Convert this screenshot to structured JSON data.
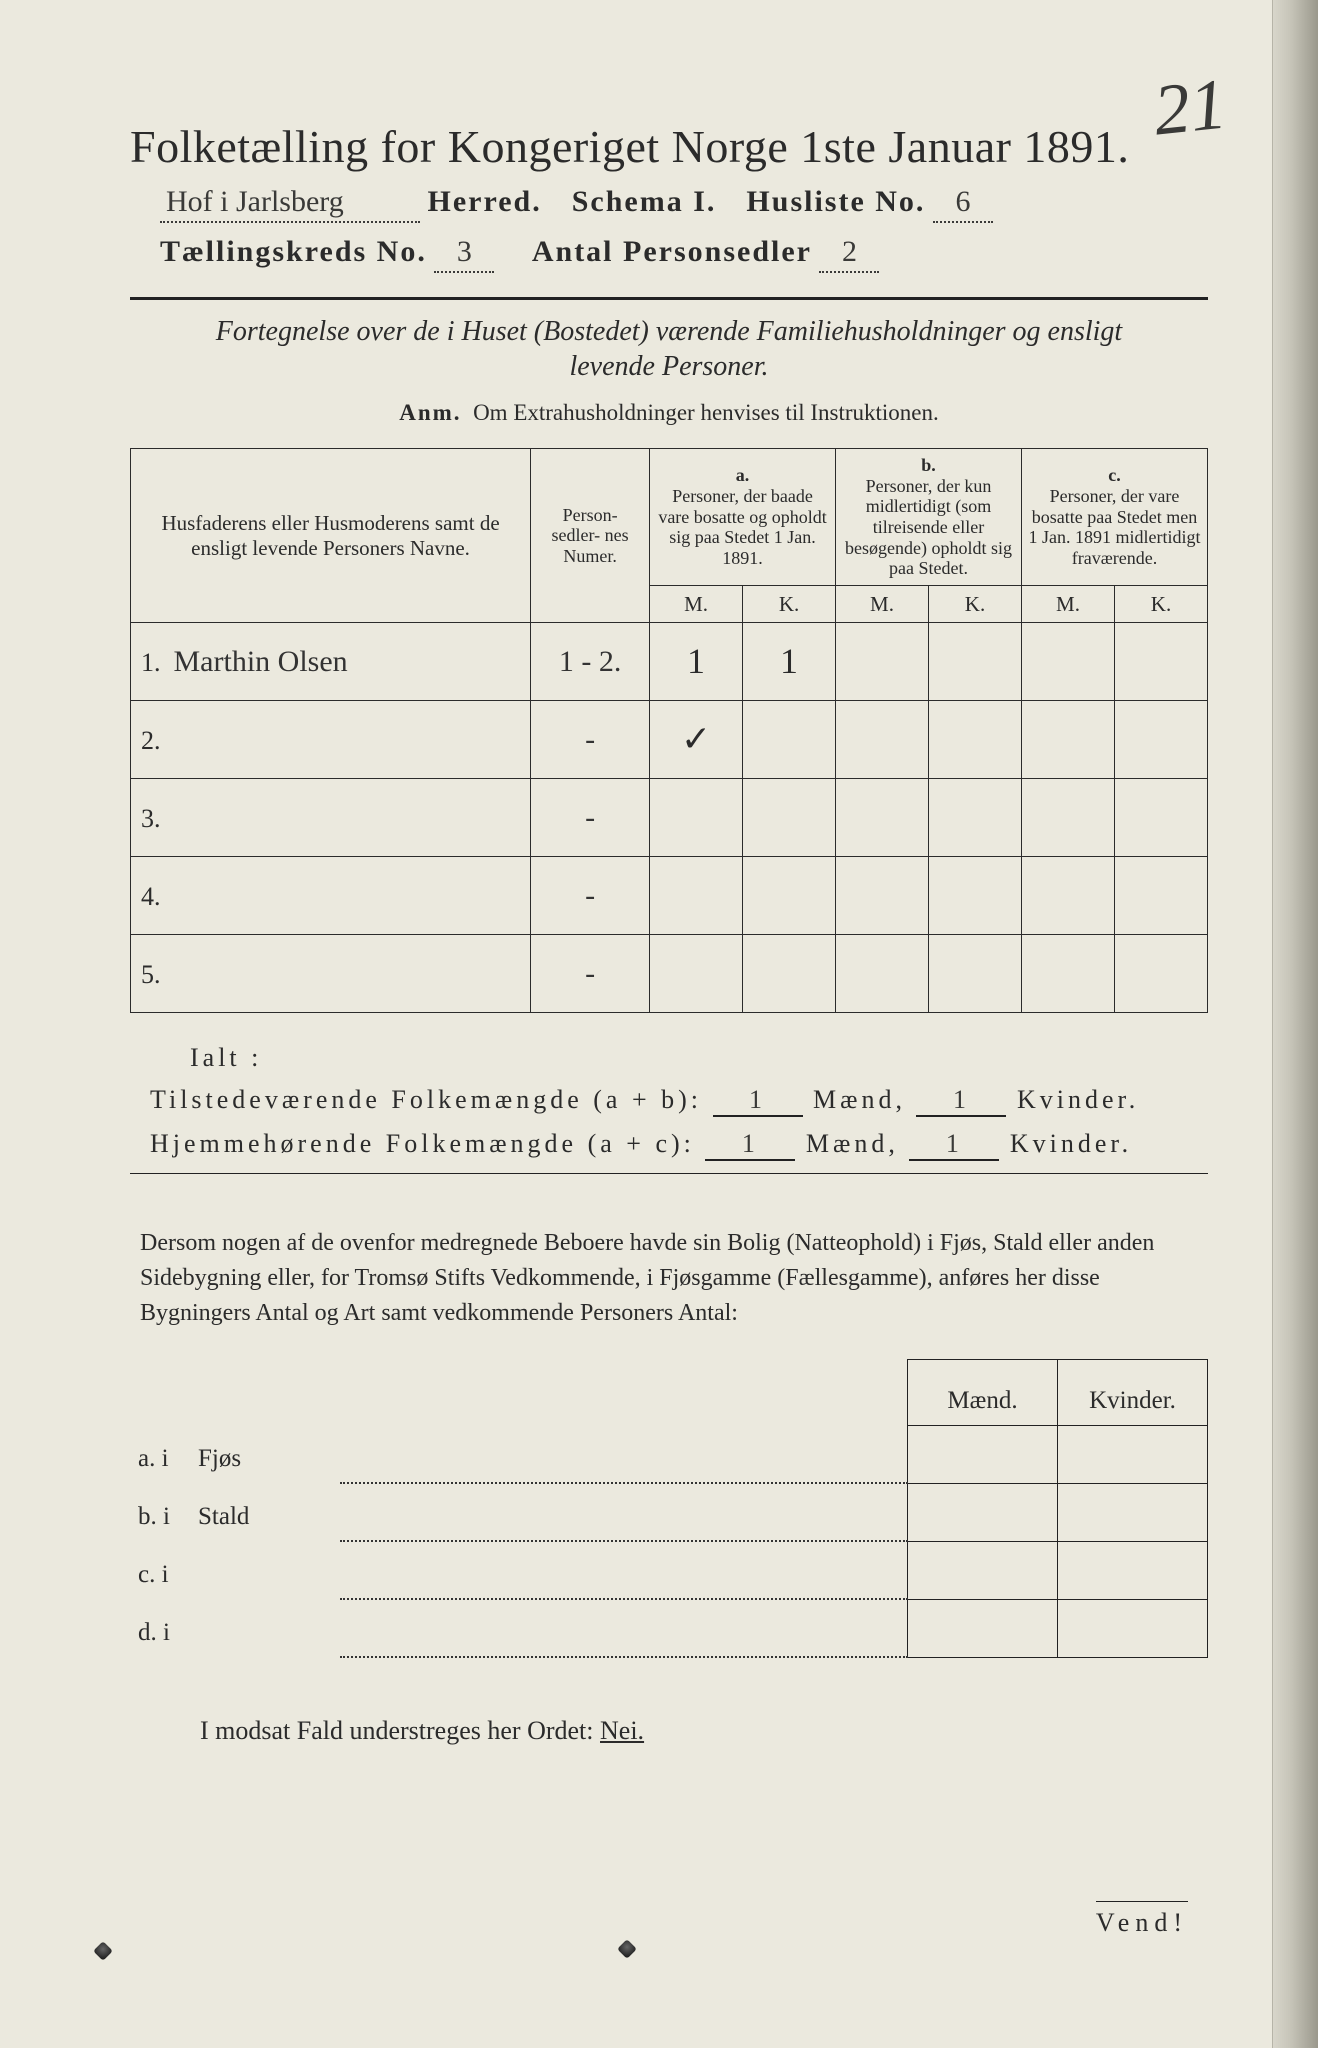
{
  "corner_number": "21",
  "title": "Folketælling for Kongeriget Norge 1ste Januar 1891.",
  "line2": {
    "herred": "Hof i Jarlsberg",
    "herred_label": "Herred.",
    "schema_label": "Schema I.",
    "husliste_label": "Husliste No.",
    "husliste_no": "6"
  },
  "line3": {
    "kreds_label": "Tællingskreds No.",
    "kreds_no": "3",
    "antal_label": "Antal Personsedler",
    "antal": "2"
  },
  "subhead": "Fortegnelse over de i Huset (Bostedet) værende Familiehusholdninger og ensligt levende Personer.",
  "anm_label": "Anm.",
  "anm_text": "Om Extrahusholdninger henvises til Instruktionen.",
  "table": {
    "col_name": "Husfaderens eller Husmoderens samt de ensligt levende Personers Navne.",
    "col_numer": "Person-\nsedler-\nnes\nNumer.",
    "a_label": "a.",
    "a_text": "Personer, der baade vare bosatte og opholdt sig paa Stedet 1 Jan. 1891.",
    "b_label": "b.",
    "b_text": "Personer, der kun midlertidigt (som tilreisende eller besøgende) opholdt sig paa Stedet.",
    "c_label": "c.",
    "c_text": "Personer, der vare bosatte paa Stedet men 1 Jan. 1891 midlertidigt fraværende.",
    "mk_m": "M.",
    "mk_k": "K.",
    "rows": [
      {
        "n": "1.",
        "name": "Marthin Olsen",
        "numer": "1 - 2.",
        "a_m": "1",
        "a_k": "1",
        "b_m": "",
        "b_k": "",
        "c_m": "",
        "c_k": ""
      },
      {
        "n": "2.",
        "name": "",
        "numer": "-",
        "a_m": "✓",
        "a_k": "",
        "b_m": "",
        "b_k": "",
        "c_m": "",
        "c_k": ""
      },
      {
        "n": "3.",
        "name": "",
        "numer": "-",
        "a_m": "",
        "a_k": "",
        "b_m": "",
        "b_k": "",
        "c_m": "",
        "c_k": ""
      },
      {
        "n": "4.",
        "name": "",
        "numer": "-",
        "a_m": "",
        "a_k": "",
        "b_m": "",
        "b_k": "",
        "c_m": "",
        "c_k": ""
      },
      {
        "n": "5.",
        "name": "",
        "numer": "-",
        "a_m": "",
        "a_k": "",
        "b_m": "",
        "b_k": "",
        "c_m": "",
        "c_k": ""
      }
    ]
  },
  "ialt": "Ialt :",
  "sum1": {
    "label": "Tilstedeværende Folkemængde (a + b):",
    "m": "1",
    "mlabel": "Mænd,",
    "k": "1",
    "klabel": "Kvinder."
  },
  "sum2": {
    "label": "Hjemmehørende Folkemængde (a + c):",
    "m": "1",
    "mlabel": "Mænd,",
    "k": "1",
    "klabel": "Kvinder."
  },
  "para": "Dersom nogen af de ovenfor medregnede Beboere havde sin Bolig (Natteophold) i Fjøs, Stald eller anden Sidebygning eller, for Tromsø Stifts Vedkommende, i Fjøsgamme (Fællesgamme), anføres her disse Bygningers Antal og Art samt vedkommende Personers Antal:",
  "bottom": {
    "col_m": "Mænd.",
    "col_k": "Kvinder.",
    "rows": [
      {
        "lab": "a.  i",
        "bldg": "Fjøs"
      },
      {
        "lab": "b.  i",
        "bldg": "Stald"
      },
      {
        "lab": "c.  i",
        "bldg": ""
      },
      {
        "lab": "d.  i",
        "bldg": ""
      }
    ]
  },
  "nei_text_pre": "I modsat Fald understreges her Ordet: ",
  "nei_word": "Nei.",
  "vend": "Vend!",
  "colors": {
    "paper": "#ebe9de",
    "ink": "#2b2b2b",
    "blue_pencil": "#2a5aa8"
  }
}
